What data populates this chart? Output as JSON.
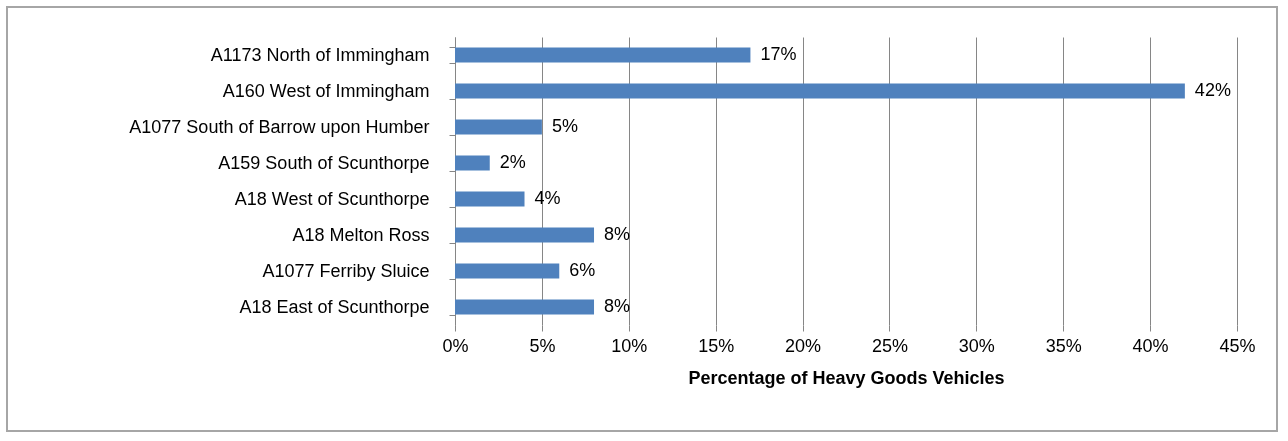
{
  "chart_data": {
    "type": "bar",
    "orientation": "horizontal",
    "xlabel": "Percentage of Heavy Goods Vehicles",
    "categories": [
      "A1173 North of Immingham",
      "A160 West of Immingham",
      "A1077 South of Barrow upon Humber",
      "A159 South of Scunthorpe",
      "A18 West of Scunthorpe",
      "A18 Melton Ross",
      "A1077 Ferriby Sluice",
      "A18 East of Scunthorpe"
    ],
    "values": [
      17,
      42,
      5,
      2,
      4,
      8,
      6,
      8
    ],
    "value_labels": [
      "17%",
      "42%",
      "5%",
      "2%",
      "4%",
      "8%",
      "6%",
      "8%"
    ],
    "color": "#4f81bd",
    "xlim": [
      0,
      45
    ],
    "xticks": [
      {
        "value": 0,
        "label": "0%"
      },
      {
        "value": 5,
        "label": "5%"
      },
      {
        "value": 10,
        "label": "10%"
      },
      {
        "value": 15,
        "label": "15%"
      },
      {
        "value": 20,
        "label": "20%"
      },
      {
        "value": 25,
        "label": "25%"
      },
      {
        "value": 30,
        "label": "30%"
      },
      {
        "value": 35,
        "label": "35%"
      },
      {
        "value": 40,
        "label": "40%"
      },
      {
        "value": 45,
        "label": "45%"
      }
    ],
    "grid": true
  }
}
